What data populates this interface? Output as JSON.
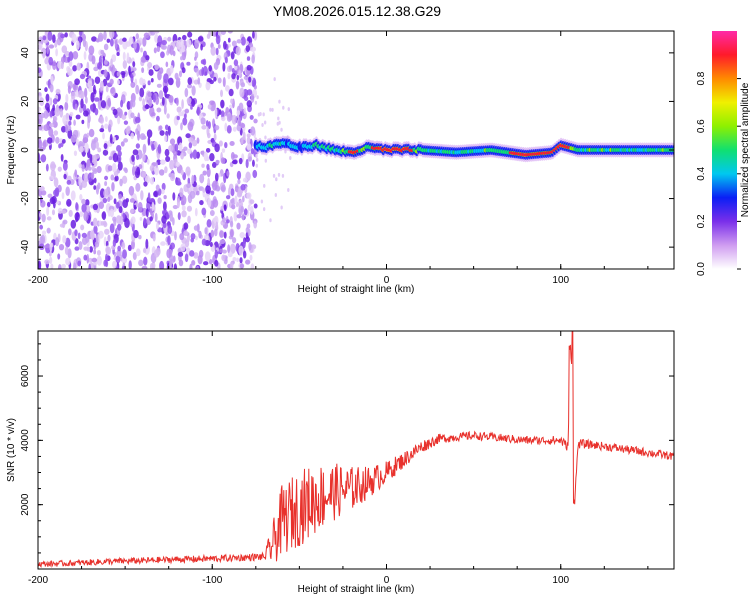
{
  "title": "YM08.2026.015.12.38.G29",
  "colors": {
    "snr_line": "#e8312c",
    "axis": "#000000",
    "noise_dots": "#6a1fe0",
    "colormap": [
      "#ffffff",
      "#cf9cf0",
      "#7a2fea",
      "#0a1ff5",
      "#00c8f0",
      "#10e070",
      "#8ef000",
      "#f0f000",
      "#ff8a00",
      "#ff1a2a",
      "#ff2aa8"
    ]
  },
  "chart_data": [
    {
      "id": "spectrogram",
      "type": "heatmap",
      "xlabel": "Height of straight line (km)",
      "ylabel": "Frequency (Hz)",
      "xlim": [
        -200,
        165
      ],
      "ylim": [
        -49,
        49
      ],
      "xticks": [
        -200,
        -100,
        0,
        100
      ],
      "xtick_labels": [
        "-200",
        "-100",
        "0",
        "100"
      ],
      "yticks": [
        -40,
        -20,
        0,
        20,
        40
      ],
      "ytick_labels": [
        "-40",
        "-20",
        "0",
        "20",
        "40"
      ],
      "noise_region_km": [
        -200,
        -75
      ],
      "signal_onset_km": -75,
      "ridge": {
        "description": "dominant spectral line near 0 Hz",
        "km": [
          -75,
          -70,
          -60,
          -50,
          -40,
          -30,
          -20,
          -10,
          0,
          10,
          20,
          40,
          60,
          80,
          95,
          100,
          110,
          165
        ],
        "hz": [
          2,
          1,
          3,
          1,
          2,
          0,
          -1,
          1,
          0,
          0,
          0,
          -1,
          0,
          -2,
          -1,
          2,
          0,
          0
        ],
        "amp": [
          0.5,
          0.55,
          0.6,
          0.5,
          0.7,
          0.6,
          0.8,
          0.75,
          0.95,
          0.9,
          0.7,
          0.65,
          0.7,
          0.85,
          0.8,
          0.9,
          0.7,
          0.7
        ]
      },
      "colorbar": {
        "label": "Normalized spectral amplitude",
        "range": [
          0,
          1
        ],
        "ticks": [
          0.0,
          0.2,
          0.4,
          0.6,
          0.8
        ],
        "tick_labels": [
          "0.0",
          "0.2",
          "0.4",
          "0.6",
          "0.8"
        ]
      }
    },
    {
      "id": "snr",
      "type": "line",
      "xlabel": "Height of straight line (km)",
      "ylabel": "SNR (10 * v/v)",
      "xlim": [
        -200,
        165
      ],
      "ylim": [
        0,
        7400
      ],
      "xticks": [
        -200,
        -100,
        0,
        100
      ],
      "xtick_labels": [
        "-200",
        "-100",
        "0",
        "100"
      ],
      "yticks": [
        2000,
        4000,
        6000
      ],
      "ytick_labels": [
        "2000",
        "4000",
        "6000"
      ],
      "series": [
        {
          "name": "SNR",
          "x": [
            -200,
            -180,
            -160,
            -140,
            -120,
            -100,
            -80,
            -70,
            -65,
            -60,
            -50,
            -40,
            -30,
            -20,
            -10,
            0,
            10,
            20,
            30,
            40,
            50,
            60,
            70,
            80,
            90,
            100,
            104,
            106,
            108,
            110,
            120,
            140,
            165
          ],
          "y": [
            150,
            180,
            230,
            260,
            300,
            320,
            360,
            380,
            800,
            1500,
            1900,
            2200,
            2400,
            2500,
            2700,
            3000,
            3400,
            3800,
            4050,
            4100,
            4150,
            4100,
            4050,
            4000,
            4000,
            4000,
            3800,
            6600,
            2100,
            3900,
            3850,
            3700,
            3500
          ],
          "noise_amplitude": [
            90,
            90,
            100,
            100,
            100,
            110,
            110,
            120,
            700,
            1100,
            1200,
            1100,
            900,
            700,
            500,
            350,
            250,
            200,
            150,
            130,
            130,
            130,
            130,
            130,
            130,
            150,
            150,
            600,
            150,
            150,
            130,
            130,
            130
          ]
        }
      ]
    }
  ]
}
